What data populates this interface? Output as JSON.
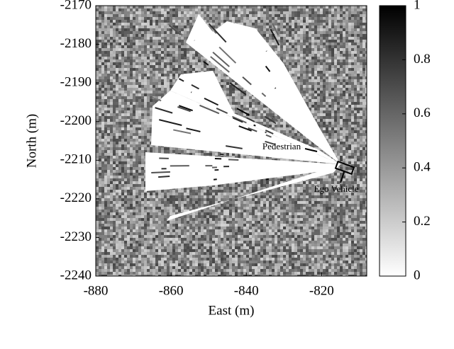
{
  "chart_data": {
    "type": "heatmap",
    "x_label": "East (m)",
    "y_label": "North (m)",
    "xlim": [
      -880,
      -808
    ],
    "xticks": [
      -880,
      -860,
      -840,
      -820
    ],
    "ylim": [
      -2240,
      -2170
    ],
    "yticks": [
      -2240,
      -2230,
      -2220,
      -2210,
      -2200,
      -2190,
      -2180,
      -2170
    ],
    "colorbar": {
      "lim": [
        0,
        1
      ],
      "ticks": [
        0,
        0.2,
        0.4,
        0.6,
        0.8,
        1
      ]
    },
    "annotations": [
      "Pedestrian",
      "Ego Vehicle"
    ]
  }
}
